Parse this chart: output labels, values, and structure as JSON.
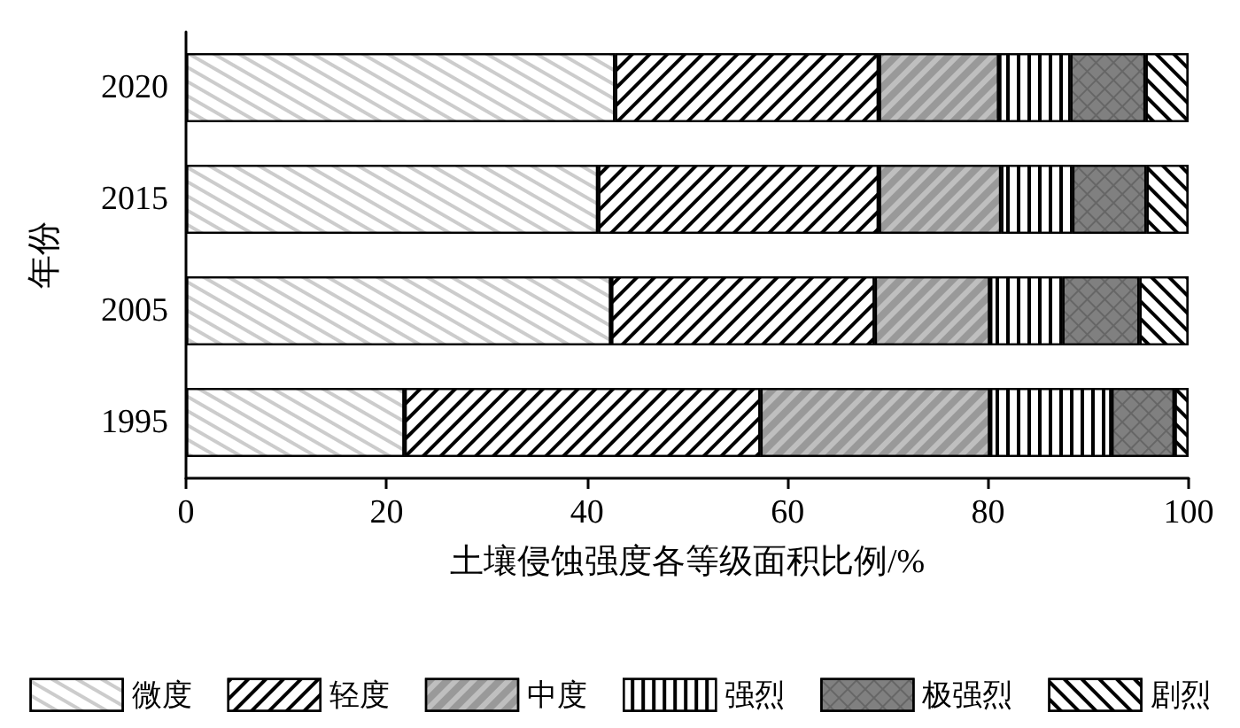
{
  "chart_data": {
    "type": "bar",
    "orientation": "horizontal",
    "stacked": true,
    "xlabel": "土壤侵蚀强度各等级面积比例/%",
    "ylabel": "年份",
    "categories": [
      "2020",
      "2015",
      "2005",
      "1995"
    ],
    "xlim": [
      0,
      100
    ],
    "xticks": [
      0,
      20,
      40,
      60,
      80,
      100
    ],
    "grid": false,
    "legend": "bottom",
    "series": [
      {
        "name": "微度",
        "color": "#ffffff",
        "values": [
          42.8,
          41.1,
          42.4,
          21.8
        ]
      },
      {
        "name": "轻度",
        "color": "#ffffff",
        "values": [
          26.3,
          28.0,
          26.3,
          35.5
        ]
      },
      {
        "name": "中度",
        "color": "#bfbfbf",
        "values": [
          12.0,
          12.2,
          11.5,
          22.9
        ]
      },
      {
        "name": "强烈",
        "color": "#ffffff",
        "values": [
          7.1,
          7.1,
          7.2,
          12.1
        ]
      },
      {
        "name": "极强烈",
        "color": "#808080",
        "values": [
          7.5,
          7.4,
          7.7,
          6.3
        ]
      },
      {
        "name": "剧烈",
        "color": "#ffffff",
        "values": [
          4.3,
          4.2,
          4.9,
          1.4
        ]
      }
    ]
  }
}
